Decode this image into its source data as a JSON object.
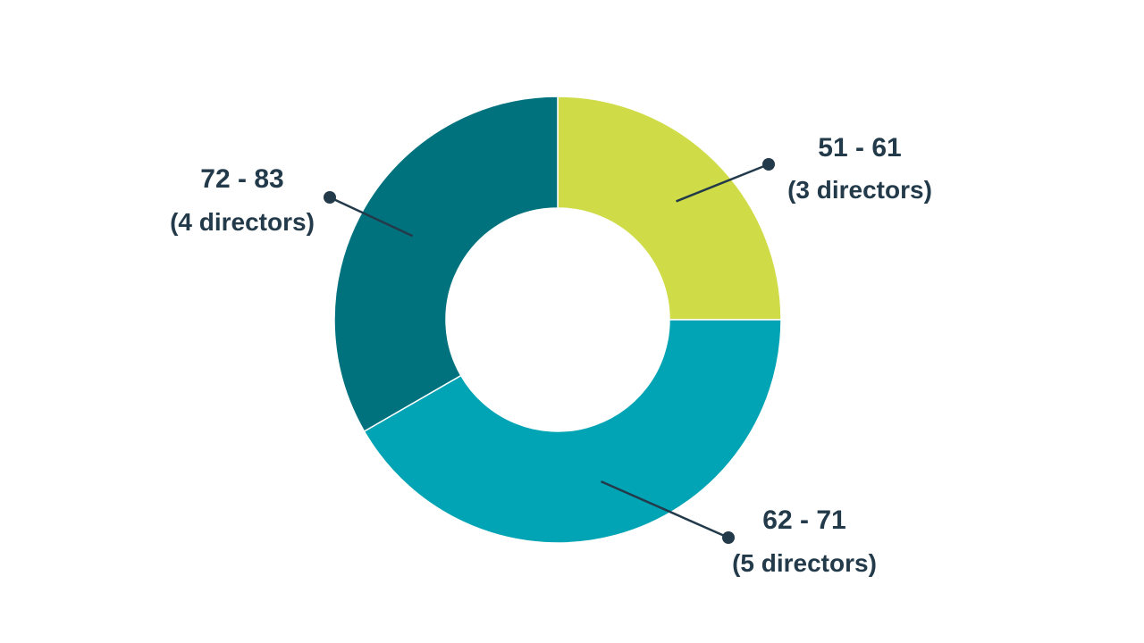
{
  "chart_data": {
    "type": "pie",
    "variant": "donut",
    "slices": [
      {
        "range": "51 - 61",
        "count": "(3 directors)",
        "value": 3,
        "color": "#cfdc47"
      },
      {
        "range": "62 - 71",
        "count": "(5 directors)",
        "value": 5,
        "color": "#00a4b4"
      },
      {
        "range": "72 - 83",
        "count": "(4 directors)",
        "value": 4,
        "color": "#00727e"
      }
    ],
    "label_color": "#233a4a",
    "leader_line_color": "#233a4a"
  }
}
